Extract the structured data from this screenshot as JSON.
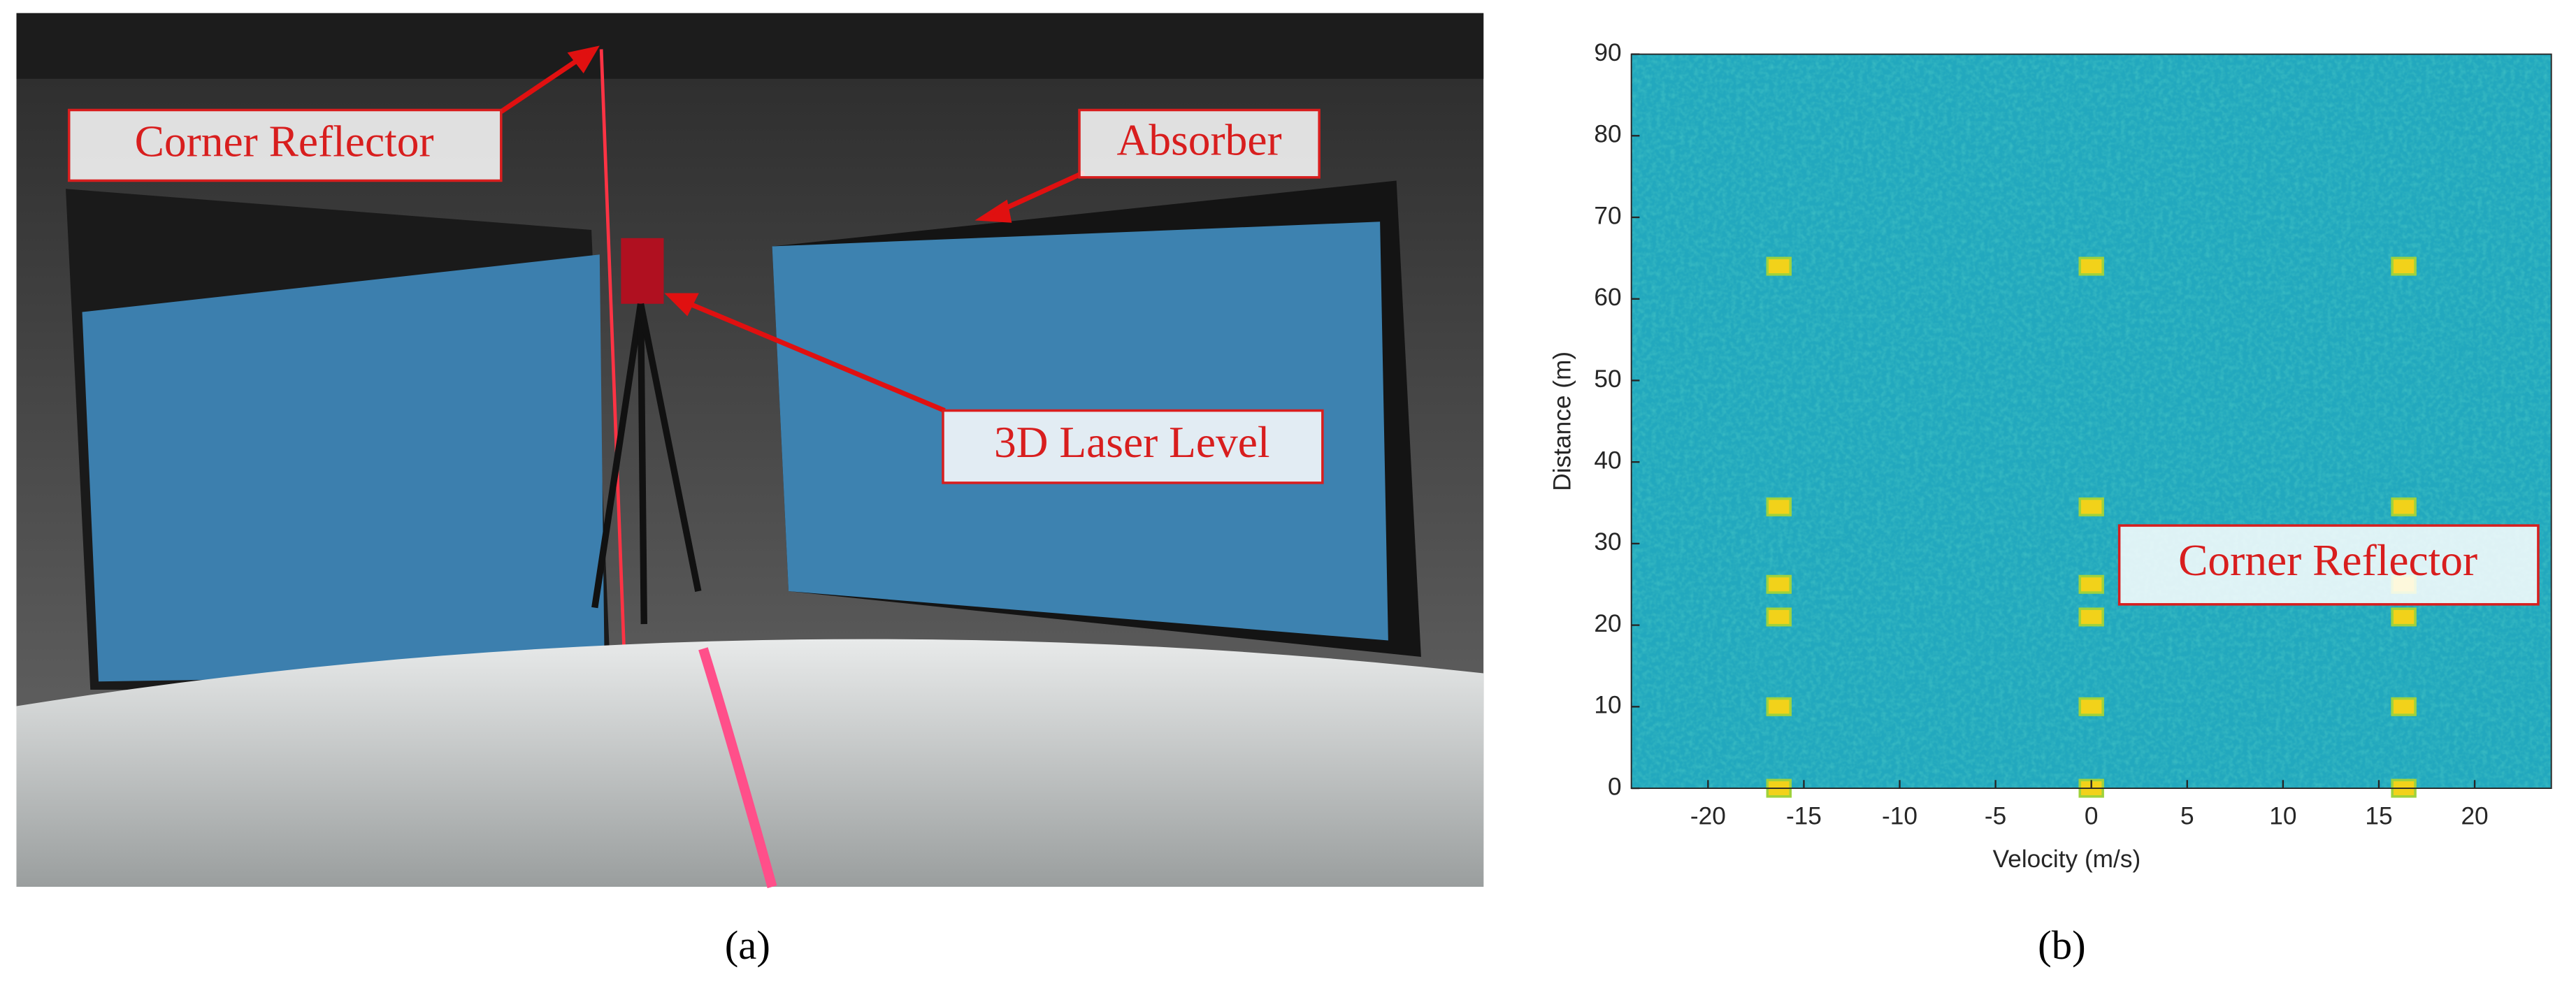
{
  "panel_a": {
    "annotations": [
      "Corner Reflector",
      "Absorber",
      "3D Laser Level"
    ],
    "caption": "(a)"
  },
  "chart_data": {
    "type": "heatmap",
    "xlabel": "Velocity (m/s)",
    "ylabel": "Distance (m)",
    "xlim": [
      -24,
      24
    ],
    "ylim": [
      0,
      90
    ],
    "xticks": [
      -20,
      -15,
      -10,
      -5,
      0,
      5,
      10,
      15,
      20
    ],
    "yticks": [
      0,
      10,
      20,
      30,
      40,
      50,
      60,
      70,
      80,
      90
    ],
    "x": [
      -16.3,
      -16.3,
      -16.3,
      -16.3,
      -16.3,
      -16.3,
      0,
      0,
      0,
      0,
      0,
      0,
      16.3,
      16.3,
      16.3,
      16.3,
      16.3,
      16.3
    ],
    "y": [
      0,
      10,
      21,
      25,
      34.5,
      64,
      0,
      10,
      21,
      25,
      34.5,
      64,
      0,
      10,
      21,
      25,
      34.5,
      64
    ],
    "annotation": "Corner Reflector"
  },
  "panel_b": {
    "caption": "(b)"
  }
}
